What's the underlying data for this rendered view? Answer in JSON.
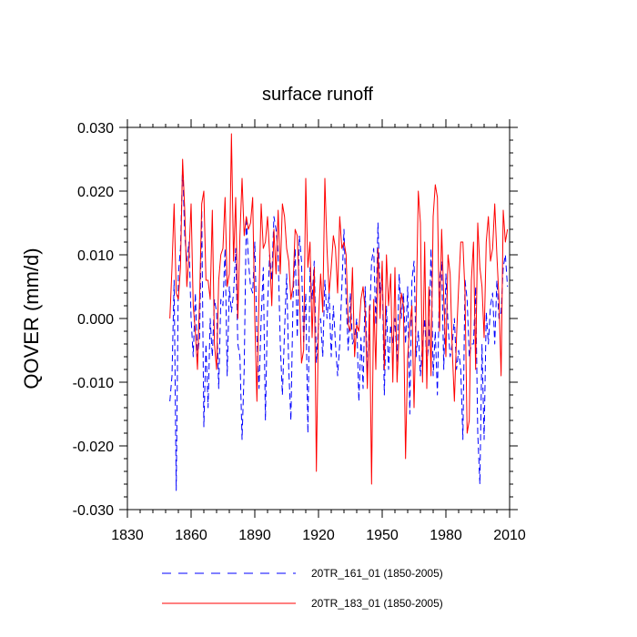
{
  "chart_data": {
    "type": "line",
    "title": "surface runoff",
    "xlabel": "",
    "ylabel": "QOVER  (mm/d)",
    "xlim": [
      1830,
      2010
    ],
    "ylim": [
      -0.03,
      0.03
    ],
    "xticks": [
      1830,
      1860,
      1890,
      1920,
      1950,
      1980,
      2010
    ],
    "yticks": [
      -0.03,
      -0.02,
      -0.01,
      0.0,
      0.01,
      0.02,
      0.03
    ],
    "xtick_labels": [
      "1830",
      "1860",
      "1890",
      "1920",
      "1950",
      "1980",
      "2010"
    ],
    "ytick_labels": [
      "-0.030",
      "-0.020",
      "-0.010",
      "0.000",
      "0.010",
      "0.020",
      "0.030"
    ],
    "grid": false,
    "legend_position": "bottom",
    "series": [
      {
        "name": "20TR_161_01 (1850-2005)",
        "color": "#0000ff",
        "style": "dashed",
        "x_start": 1850,
        "values": [
          -0.013,
          -0.009,
          0.006,
          -0.027,
          0.007,
          0.011,
          0.024,
          0.013,
          0.009,
          0.012,
          0.0,
          -0.006,
          0.004,
          -0.006,
          -0.003,
          0.017,
          -0.017,
          -0.004,
          -0.014,
          0.0,
          -0.006,
          0.003,
          0.001,
          -0.011,
          0.003,
          0.002,
          0.011,
          -0.009,
          0.005,
          0.001,
          0.004,
          0.011,
          -0.004,
          -0.006,
          -0.019,
          -0.008,
          0.016,
          0.009,
          0.005,
          0.004,
          0.012,
          -0.003,
          -0.011,
          0.0,
          0.008,
          -0.016,
          0.002,
          0.01,
          0.006,
          0.016,
          0.014,
          0.01,
          -0.004,
          -0.012,
          -0.002,
          0.007,
          -0.008,
          -0.016,
          0.003,
          0.011,
          -0.003,
          0.013,
          0.009,
          -0.004,
          0.004,
          -0.018,
          0.008,
          0.003,
          0.009,
          -0.007,
          -0.001,
          0.0,
          -0.006,
          0.006,
          0.0,
          0.004,
          -0.006,
          0.002,
          -0.004,
          -0.009,
          -0.004,
          0.005,
          0.014,
          0.003,
          -0.005,
          0.004,
          -0.004,
          -0.003,
          0.0,
          -0.013,
          -0.003,
          -0.011,
          0.005,
          -0.009,
          -0.001,
          0.009,
          0.011,
          -0.001,
          0.015,
          0.004,
          0.007,
          -0.012,
          0.002,
          -0.008,
          -0.001,
          -0.004,
          0.0,
          -0.007,
          0.007,
          0.0,
          0.004,
          -0.004,
          0.005,
          -0.015,
          0.006,
          0.009,
          -0.006,
          -0.002,
          -0.009,
          -0.004,
          0.0,
          -0.007,
          -0.004,
          0.011,
          -0.009,
          -0.002,
          -0.012,
          0.006,
          0.009,
          -0.008,
          0.007,
          -0.001,
          -0.006,
          -0.004,
          0.0,
          -0.008,
          -0.005,
          -0.008,
          -0.019,
          0.006,
          0.003,
          -0.006,
          -0.004,
          -0.004,
          0.005,
          -0.018,
          -0.026,
          -0.004,
          -0.019,
          0.001,
          -0.004,
          0.002,
          0.004,
          -0.004,
          0.006,
          0.0,
          0.001,
          0.008,
          0.01,
          0.005
        ]
      },
      {
        "name": "20TR_183_01 (1850-2005)",
        "color": "#ff0000",
        "style": "solid",
        "x_start": 1850,
        "values": [
          0.0,
          0.008,
          0.018,
          0.004,
          0.003,
          0.008,
          0.025,
          0.017,
          0.005,
          0.01,
          0.018,
          0.002,
          -0.002,
          -0.008,
          0.003,
          0.018,
          0.02,
          0.006,
          0.006,
          0.003,
          0.017,
          -0.004,
          -0.008,
          0.006,
          0.01,
          0.011,
          0.019,
          0.005,
          0.007,
          0.029,
          0.009,
          0.019,
          0.0,
          0.013,
          0.022,
          0.013,
          0.016,
          0.014,
          0.015,
          0.019,
          0.0,
          -0.013,
          0.004,
          0.018,
          0.011,
          0.012,
          0.016,
          0.01,
          0.002,
          0.014,
          0.007,
          0.017,
          0.007,
          0.018,
          0.016,
          0.011,
          0.009,
          0.003,
          0.005,
          0.014,
          0.013,
          0.004,
          -0.007,
          -0.005,
          0.022,
          0.008,
          0.012,
          -0.003,
          0.008,
          -0.024,
          0.0,
          0.007,
          0.001,
          0.022,
          0.011,
          0.004,
          0.008,
          0.013,
          0.011,
          0.004,
          0.016,
          0.011,
          0.012,
          0.01,
          -0.001,
          -0.002,
          0.008,
          -0.006,
          -0.001,
          -0.002,
          0.003,
          0.005,
          0.001,
          -0.011,
          0.002,
          -0.026,
          0.003,
          -0.008,
          0.011,
          0.0,
          0.009,
          -0.008,
          0.01,
          0.002,
          0.007,
          -0.01,
          0.008,
          -0.01,
          -0.002,
          0.004,
          0.002,
          -0.022,
          -0.006,
          -0.001,
          0.002,
          -0.014,
          0.001,
          0.02,
          0.015,
          -0.01,
          0.012,
          -0.011,
          0.005,
          -0.009,
          0.016,
          0.021,
          0.019,
          -0.002,
          0.014,
          0.003,
          -0.006,
          0.01,
          0.007,
          -0.005,
          -0.013,
          -0.003,
          0.005,
          0.012,
          0.012,
          0.004,
          -0.018,
          -0.016,
          0.006,
          0.012,
          -0.008,
          0.015,
          0.008,
          0.005,
          -0.003,
          0.012,
          0.016,
          0.009,
          0.011,
          0.018,
          0.01,
          0.003,
          -0.009,
          0.017,
          0.012,
          0.014
        ]
      }
    ]
  }
}
